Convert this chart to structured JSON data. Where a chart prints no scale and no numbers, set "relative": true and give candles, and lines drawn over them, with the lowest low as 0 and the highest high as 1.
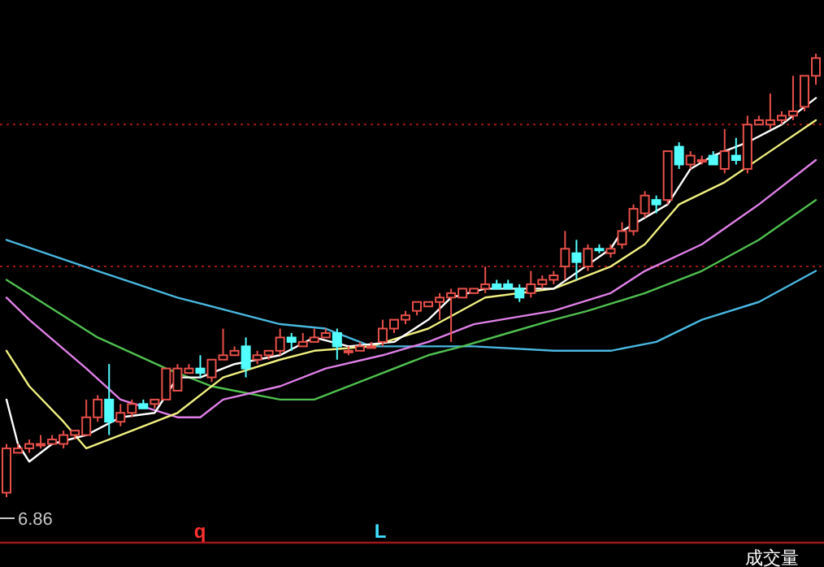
{
  "chart_data": {
    "type": "candlestick",
    "relative": true,
    "categories": [
      null,
      null,
      null,
      null,
      null,
      null,
      null,
      null,
      null,
      null,
      null,
      null,
      null,
      null,
      null,
      null,
      null,
      null,
      null,
      null,
      null,
      null,
      null,
      null,
      null,
      null,
      null,
      null,
      null,
      null,
      null,
      null,
      null,
      null,
      null,
      null,
      null,
      null,
      null,
      null,
      null,
      null,
      null,
      null,
      null,
      null,
      null,
      null,
      null,
      null,
      null,
      null,
      null,
      null,
      null,
      null,
      null,
      null,
      null,
      null,
      null,
      null,
      null,
      null,
      null,
      null,
      null,
      null,
      null,
      null,
      null,
      null
    ],
    "ohlc": [
      [
        0.01,
        0.12,
        0.0,
        0.11
      ],
      [
        0.1,
        0.12,
        0.1,
        0.11
      ],
      [
        0.11,
        0.13,
        0.1,
        0.12
      ],
      [
        0.12,
        0.14,
        0.11,
        0.12
      ],
      [
        0.12,
        0.14,
        0.12,
        0.13
      ],
      [
        0.12,
        0.15,
        0.11,
        0.14
      ],
      [
        0.14,
        0.15,
        0.13,
        0.15
      ],
      [
        0.14,
        0.22,
        0.14,
        0.18
      ],
      [
        0.18,
        0.23,
        0.17,
        0.22
      ],
      [
        0.22,
        0.3,
        0.14,
        0.17
      ],
      [
        0.17,
        0.21,
        0.16,
        0.19
      ],
      [
        0.19,
        0.22,
        0.18,
        0.21
      ],
      [
        0.21,
        0.22,
        0.2,
        0.2
      ],
      [
        0.21,
        0.22,
        0.2,
        0.22
      ],
      [
        0.22,
        0.29,
        0.22,
        0.29
      ],
      [
        0.24,
        0.3,
        0.24,
        0.29
      ],
      [
        0.28,
        0.3,
        0.28,
        0.29
      ],
      [
        0.29,
        0.32,
        0.27,
        0.28
      ],
      [
        0.27,
        0.31,
        0.26,
        0.31
      ],
      [
        0.31,
        0.38,
        0.31,
        0.32
      ],
      [
        0.32,
        0.34,
        0.32,
        0.33
      ],
      [
        0.34,
        0.36,
        0.27,
        0.29
      ],
      [
        0.31,
        0.33,
        0.3,
        0.32
      ],
      [
        0.32,
        0.33,
        0.31,
        0.33
      ],
      [
        0.33,
        0.38,
        0.32,
        0.36
      ],
      [
        0.36,
        0.37,
        0.33,
        0.35
      ],
      [
        0.34,
        0.37,
        0.34,
        0.35
      ],
      [
        0.35,
        0.38,
        0.35,
        0.36
      ],
      [
        0.36,
        0.38,
        0.36,
        0.37
      ],
      [
        0.37,
        0.38,
        0.31,
        0.34
      ],
      [
        0.33,
        0.34,
        0.32,
        0.33
      ],
      [
        0.33,
        0.35,
        0.33,
        0.34
      ],
      [
        0.34,
        0.35,
        0.34,
        0.34
      ],
      [
        0.35,
        0.4,
        0.34,
        0.38
      ],
      [
        0.38,
        0.4,
        0.37,
        0.4
      ],
      [
        0.4,
        0.42,
        0.39,
        0.41
      ],
      [
        0.42,
        0.44,
        0.41,
        0.44
      ],
      [
        0.43,
        0.44,
        0.43,
        0.44
      ],
      [
        0.44,
        0.46,
        0.4,
        0.45
      ],
      [
        0.45,
        0.47,
        0.35,
        0.46
      ],
      [
        0.45,
        0.47,
        0.45,
        0.47
      ],
      [
        0.46,
        0.47,
        0.46,
        0.47
      ],
      [
        0.47,
        0.52,
        0.46,
        0.48
      ],
      [
        0.48,
        0.49,
        0.47,
        0.47
      ],
      [
        0.48,
        0.49,
        0.47,
        0.47
      ],
      [
        0.47,
        0.48,
        0.44,
        0.45
      ],
      [
        0.46,
        0.51,
        0.45,
        0.48
      ],
      [
        0.48,
        0.5,
        0.47,
        0.49
      ],
      [
        0.49,
        0.51,
        0.48,
        0.5
      ],
      [
        0.52,
        0.6,
        0.49,
        0.56
      ],
      [
        0.55,
        0.58,
        0.49,
        0.53
      ],
      [
        0.52,
        0.57,
        0.51,
        0.56
      ],
      [
        0.56,
        0.57,
        0.55,
        0.56
      ],
      [
        0.55,
        0.57,
        0.54,
        0.56
      ],
      [
        0.57,
        0.62,
        0.56,
        0.6
      ],
      [
        0.6,
        0.66,
        0.59,
        0.65
      ],
      [
        0.64,
        0.69,
        0.63,
        0.68
      ],
      [
        0.67,
        0.68,
        0.64,
        0.66
      ],
      [
        0.67,
        0.78,
        0.66,
        0.78
      ],
      [
        0.79,
        0.8,
        0.74,
        0.75
      ],
      [
        0.75,
        0.78,
        0.74,
        0.77
      ],
      [
        0.76,
        0.77,
        0.75,
        0.76
      ],
      [
        0.77,
        0.78,
        0.75,
        0.75
      ],
      [
        0.74,
        0.83,
        0.73,
        0.78
      ],
      [
        0.77,
        0.81,
        0.75,
        0.76
      ],
      [
        0.74,
        0.86,
        0.73,
        0.84
      ],
      [
        0.84,
        0.86,
        0.84,
        0.85
      ],
      [
        0.84,
        0.91,
        0.83,
        0.85
      ],
      [
        0.85,
        0.87,
        0.84,
        0.86
      ],
      [
        0.86,
        0.95,
        0.85,
        0.87
      ],
      [
        0.88,
        0.95,
        0.87,
        0.95
      ],
      [
        0.95,
        1.0,
        0.93,
        0.99
      ]
    ],
    "colors": [
      "#e8504a",
      "#e8504a",
      "#e8504a",
      "#e8504a",
      "#e8504a",
      "#e8504a",
      "#e8504a",
      "#e8504a",
      "#e8504a",
      "#54ffff",
      "#e8504a",
      "#e8504a",
      "#54ffff",
      "#e8504a",
      "#e8504a",
      "#e8504a",
      "#e8504a",
      "#54ffff",
      "#e8504a",
      "#e8504a",
      "#e8504a",
      "#54ffff",
      "#e8504a",
      "#e8504a",
      "#e8504a",
      "#54ffff",
      "#e8504a",
      "#e8504a",
      "#e8504a",
      "#54ffff",
      "#e8504a",
      "#e8504a",
      "#e8504a",
      "#e8504a",
      "#e8504a",
      "#e8504a",
      "#e8504a",
      "#e8504a",
      "#e8504a",
      "#e8504a",
      "#e8504a",
      "#e8504a",
      "#e8504a",
      "#54ffff",
      "#54ffff",
      "#54ffff",
      "#e8504a",
      "#e8504a",
      "#e8504a",
      "#e8504a",
      "#54ffff",
      "#e8504a",
      "#54ffff",
      "#e8504a",
      "#e8504a",
      "#e8504a",
      "#e8504a",
      "#54ffff",
      "#e8504a",
      "#54ffff",
      "#e8504a",
      "#e8504a",
      "#54ffff",
      "#e8504a",
      "#54ffff",
      "#e8504a",
      "#e8504a",
      "#e8504a",
      "#e8504a",
      "#e8504a",
      "#e8504a",
      "#e8504a"
    ],
    "series": [
      {
        "type": "line",
        "color": "#4ab8e0",
        "values": [
          0.58,
          null,
          null,
          null,
          null,
          null,
          null,
          null,
          0.51,
          null,
          null,
          null,
          null,
          null,
          null,
          0.45,
          null,
          null,
          null,
          null,
          null,
          null,
          null,
          null,
          0.39,
          null,
          null,
          null,
          0.38,
          null,
          null,
          null,
          0.34,
          null,
          null,
          null,
          null,
          0.34,
          null,
          null,
          null,
          0.34,
          null,
          null,
          null,
          null,
          null,
          null,
          0.33,
          null,
          null,
          null,
          null,
          0.33,
          null,
          null,
          null,
          0.35,
          null,
          null,
          null,
          0.4,
          null,
          null,
          null,
          null,
          0.44,
          null,
          null,
          null,
          null,
          0.51
        ]
      },
      {
        "type": "line",
        "color": "#50c050",
        "values": [
          0.49,
          null,
          null,
          null,
          null,
          null,
          null,
          null,
          0.36,
          null,
          null,
          null,
          null,
          null,
          0.29,
          null,
          null,
          null,
          0.25,
          null,
          null,
          null,
          null,
          null,
          0.22,
          null,
          null,
          0.22,
          null,
          null,
          null,
          null,
          0.27,
          null,
          null,
          null,
          null,
          0.32,
          null,
          null,
          0.34,
          null,
          null,
          null,
          0.37,
          null,
          null,
          null,
          0.4,
          null,
          null,
          0.42,
          null,
          null,
          null,
          null,
          0.46,
          null,
          null,
          null,
          null,
          0.51,
          null,
          null,
          null,
          null,
          0.58,
          null,
          null,
          null,
          null,
          0.67
        ]
      },
      {
        "type": "line",
        "color": "#e080e8",
        "values": [
          0.45,
          null,
          0.4,
          null,
          null,
          null,
          null,
          0.29,
          null,
          null,
          0.22,
          null,
          null,
          null,
          null,
          0.18,
          null,
          0.18,
          null,
          0.22,
          null,
          null,
          null,
          null,
          0.25,
          null,
          null,
          null,
          0.29,
          null,
          null,
          null,
          null,
          0.32,
          null,
          null,
          null,
          0.35,
          null,
          null,
          null,
          0.39,
          null,
          null,
          null,
          null,
          null,
          null,
          0.42,
          null,
          null,
          null,
          null,
          0.46,
          null,
          null,
          0.51,
          null,
          null,
          null,
          null,
          0.57,
          null,
          null,
          null,
          null,
          0.66,
          null,
          null,
          null,
          null,
          0.76
        ]
      },
      {
        "type": "line",
        "color": "#f0f080",
        "values": [
          0.33,
          null,
          0.25,
          null,
          null,
          0.17,
          null,
          0.11,
          null,
          null,
          0.14,
          null,
          null,
          null,
          null,
          0.19,
          null,
          null,
          null,
          0.27,
          null,
          null,
          null,
          null,
          0.31,
          null,
          null,
          0.33,
          null,
          null,
          null,
          null,
          0.34,
          null,
          null,
          null,
          null,
          0.38,
          null,
          null,
          null,
          null,
          0.45,
          null,
          null,
          null,
          null,
          null,
          0.47,
          null,
          null,
          null,
          null,
          0.52,
          null,
          null,
          0.57,
          null,
          null,
          0.66,
          null,
          null,
          null,
          0.71,
          null,
          null,
          null,
          0.78,
          null,
          null,
          null,
          0.85
        ]
      },
      {
        "type": "line",
        "color": "#ffffff",
        "values": [
          0.22,
          0.12,
          0.08,
          null,
          0.12,
          null,
          null,
          0.14,
          null,
          null,
          0.18,
          null,
          null,
          0.19,
          null,
          0.27,
          null,
          0.27,
          null,
          null,
          0.3,
          null,
          null,
          null,
          0.32,
          null,
          null,
          0.36,
          null,
          null,
          0.34,
          null,
          null,
          null,
          0.35,
          null,
          null,
          0.4,
          null,
          0.45,
          null,
          null,
          0.47,
          null,
          null,
          null,
          null,
          null,
          0.47,
          null,
          null,
          null,
          null,
          0.56,
          0.6,
          null,
          null,
          null,
          0.66,
          null,
          0.74,
          null,
          0.77,
          null,
          null,
          0.8,
          null,
          null,
          0.84,
          null,
          null,
          0.9
        ]
      }
    ],
    "ref_lines": [
      {
        "axis": "y",
        "value": 0.84,
        "color": "#a01818",
        "line_style": "dotted"
      },
      {
        "axis": "y",
        "value": 0.52,
        "color": "#a01818",
        "line_style": "dotted"
      }
    ],
    "annotations": [
      "6.86",
      "q",
      "L",
      "成交量"
    ]
  }
}
